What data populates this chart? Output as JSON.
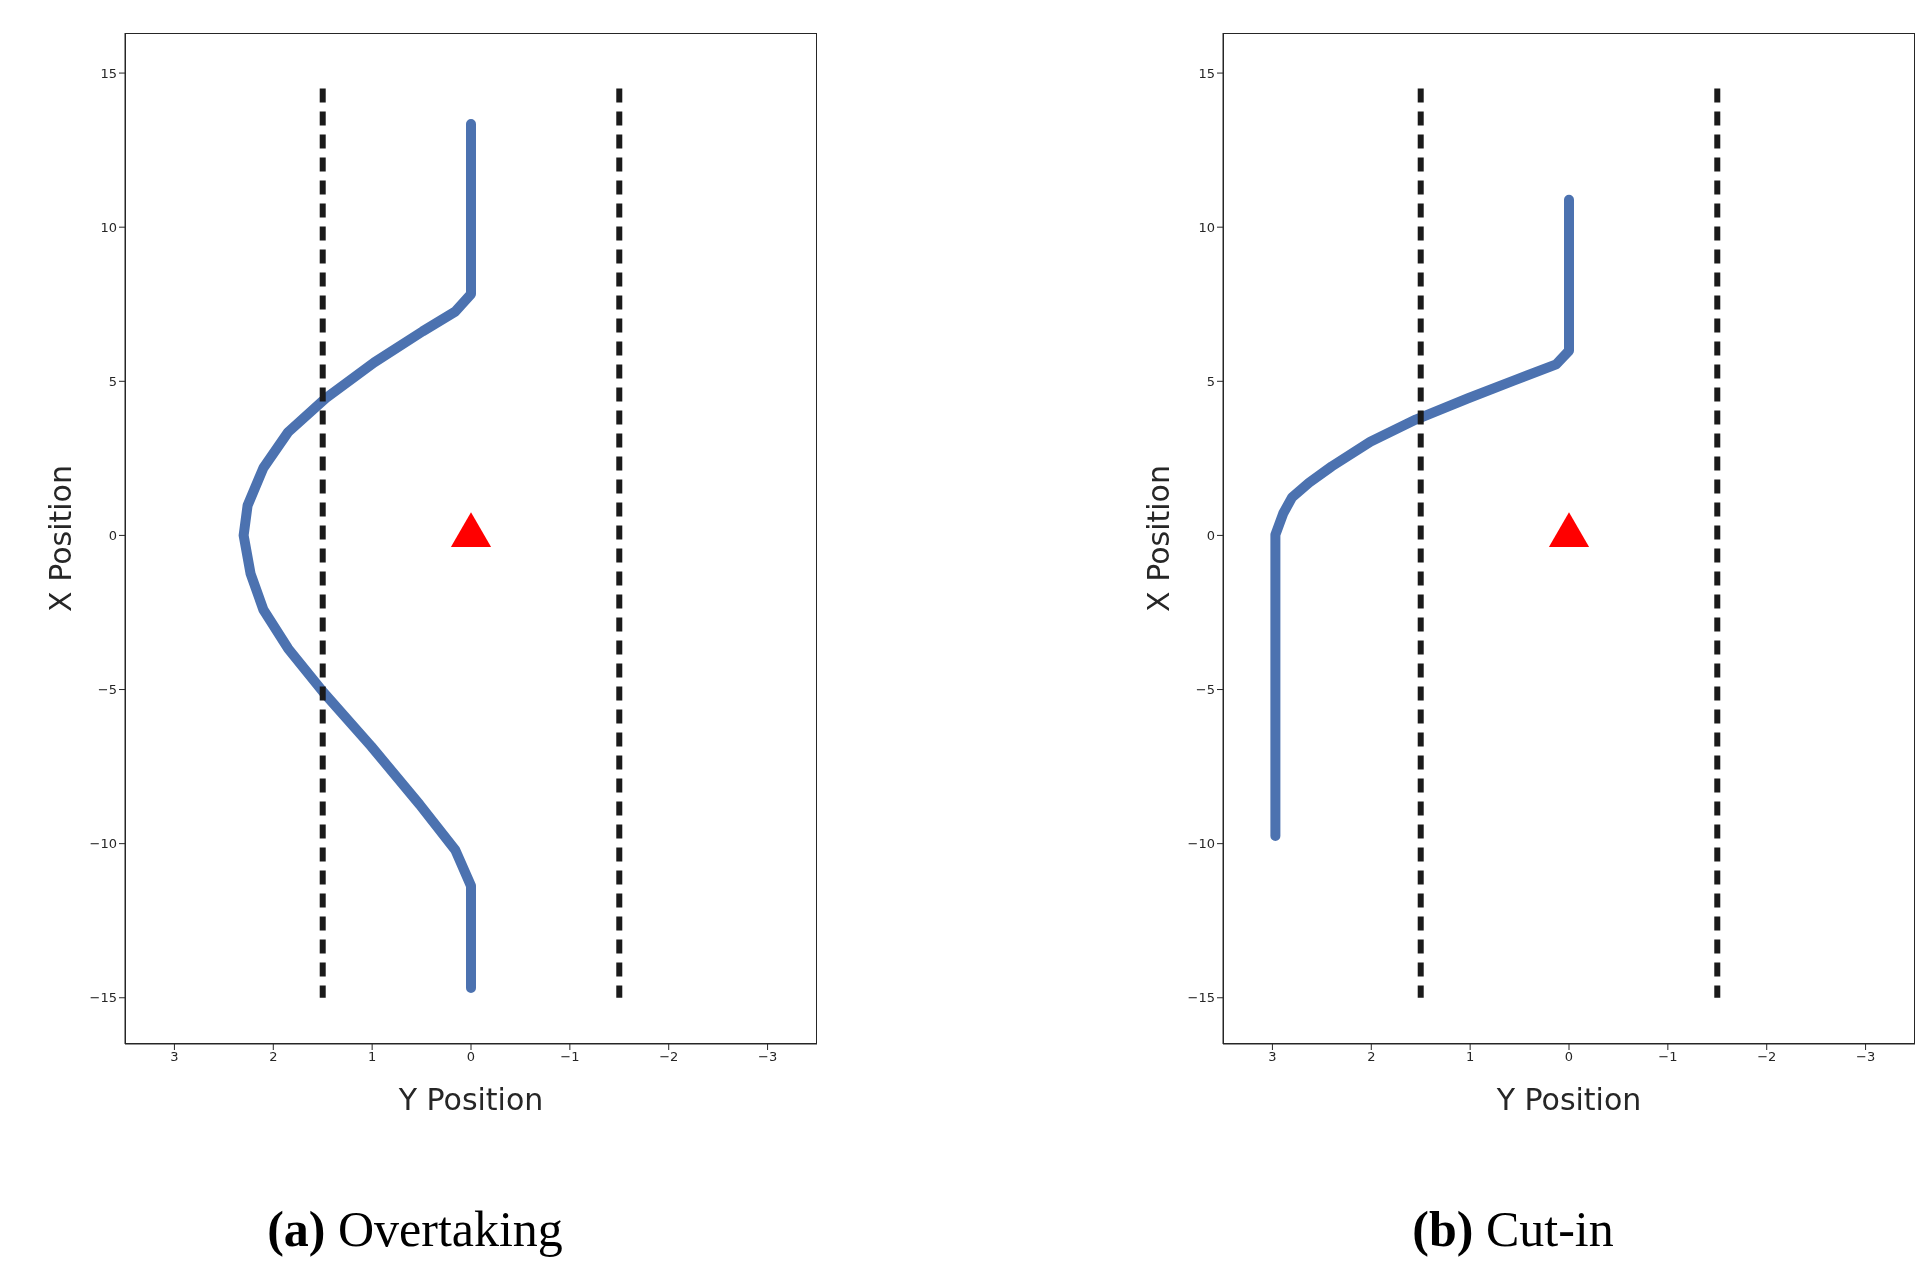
{
  "chart_data": [
    {
      "type": "line",
      "title": "(a) Overtaking",
      "xlabel": "Y Position",
      "ylabel": "X Position",
      "xlim": [
        3.5,
        -3.5
      ],
      "xticks": [
        3,
        2,
        1,
        0,
        {
          "value": -1,
          "label": "−1"
        },
        {
          "value": -2,
          "label": "−2"
        },
        {
          "value": -3,
          "label": "−3"
        }
      ],
      "ylim": [
        -16.5,
        16.3
      ],
      "yticks": [
        {
          "value": -15,
          "label": "−15"
        },
        {
          "value": -10,
          "label": "−10"
        },
        {
          "value": -5,
          "label": "−5"
        },
        0,
        5,
        10,
        15
      ],
      "series": [
        {
          "color": "#4c72b0",
          "x": [
            0,
            0,
            0.16,
            0.49,
            0.98,
            1.47,
            1.85,
            2.1,
            2.26,
            2.3,
            2.23,
            2.1,
            1.85,
            1.49,
            1.01,
            0.52,
            0.16,
            0,
            0
          ],
          "values": [
            13.35,
            7.83,
            7.26,
            6.62,
            5.61,
            4.45,
            3.35,
            2.19,
            0.97,
            0,
            -1.24,
            -2.41,
            -3.67,
            -5.1,
            -6.84,
            -8.73,
            -10.2,
            -11.37,
            -14.68
          ]
        },
        {
          "color": "#1a1a1a",
          "line_style": "dashed",
          "x": [
            1.5,
            1.5
          ],
          "values": [
            14.5,
            -15
          ]
        },
        {
          "color": "#1a1a1a",
          "line_style": "dashed",
          "x": [
            -1.5,
            -1.5
          ],
          "values": [
            14.5,
            -15
          ]
        },
        {
          "type": "scatter",
          "marker": "triangle",
          "color": "#ff0000",
          "x": [
            0
          ],
          "values": [
            0
          ]
        }
      ]
    },
    {
      "type": "line",
      "title": "(b) Cut-in",
      "xlabel": "Y Position",
      "ylabel": "X Position",
      "xlim": [
        3.5,
        -3.5
      ],
      "xticks": [
        3,
        2,
        1,
        0,
        {
          "value": -1,
          "label": "−1"
        },
        {
          "value": -2,
          "label": "−2"
        },
        {
          "value": -3,
          "label": "−3"
        }
      ],
      "ylim": [
        -16.5,
        16.3
      ],
      "yticks": [
        {
          "value": -15,
          "label": "−15"
        },
        {
          "value": -10,
          "label": "−10"
        },
        {
          "value": -5,
          "label": "−5"
        },
        0,
        5,
        10,
        15
      ],
      "series": [
        {
          "color": "#4c72b0",
          "x": [
            0,
            0,
            0.13,
            0.56,
            1.02,
            1.55,
            2.01,
            2.4,
            2.63,
            2.8,
            2.89,
            2.97,
            2.97
          ],
          "values": [
            10.89,
            5.99,
            5.55,
            5.02,
            4.45,
            3.76,
            3.04,
            2.24,
            1.71,
            1.24,
            0.72,
            0.02,
            -9.75
          ]
        },
        {
          "color": "#1a1a1a",
          "line_style": "dashed",
          "x": [
            1.5,
            1.5
          ],
          "values": [
            14.5,
            -15
          ]
        },
        {
          "color": "#1a1a1a",
          "line_style": "dashed",
          "x": [
            -1.5,
            -1.5
          ],
          "values": [
            14.5,
            -15
          ]
        },
        {
          "type": "scatter",
          "marker": "triangle",
          "color": "#ff0000",
          "x": [
            0
          ],
          "values": [
            0
          ]
        }
      ]
    }
  ]
}
